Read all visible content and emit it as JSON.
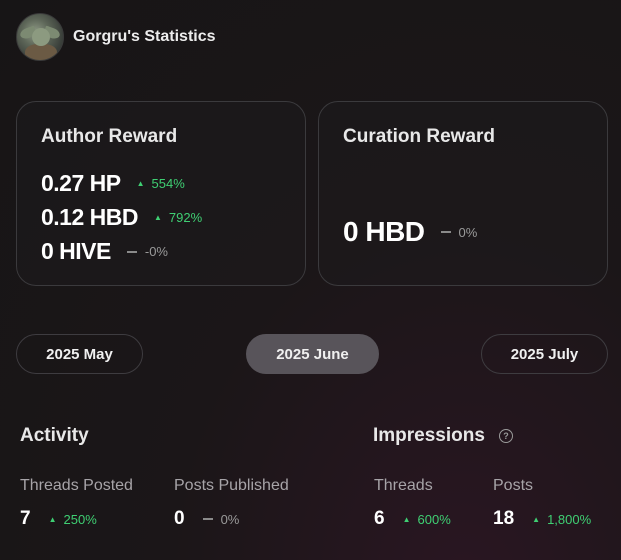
{
  "header": {
    "title": "Gorgru's Statistics"
  },
  "author_reward": {
    "title": "Author Reward",
    "rows": [
      {
        "value": "0.27 HP",
        "change": "554%",
        "trend": "up"
      },
      {
        "value": "0.12 HBD",
        "change": "792%",
        "trend": "up"
      },
      {
        "value": "0 HIVE",
        "change": "-0%",
        "trend": "flat"
      }
    ]
  },
  "curation_reward": {
    "title": "Curation Reward",
    "value": "0 HBD",
    "change": "0%",
    "trend": "flat"
  },
  "months": {
    "prev": "2025 May",
    "current": "2025 June",
    "next": "2025 July"
  },
  "activity": {
    "title": "Activity",
    "threads_posted": {
      "label": "Threads Posted",
      "value": "7",
      "change": "250%",
      "trend": "up"
    },
    "posts_published": {
      "label": "Posts Published",
      "value": "0",
      "change": "0%",
      "trend": "flat"
    }
  },
  "impressions": {
    "title": "Impressions",
    "help_icon": "question-circle-icon",
    "threads": {
      "label": "Threads",
      "value": "6",
      "change": "600%",
      "trend": "up"
    },
    "posts": {
      "label": "Posts",
      "value": "18",
      "change": "1,800%",
      "trend": "up"
    }
  },
  "colors": {
    "up": "#3fcf73",
    "flat": "#9a9a9a",
    "active_month": "#58545a"
  }
}
